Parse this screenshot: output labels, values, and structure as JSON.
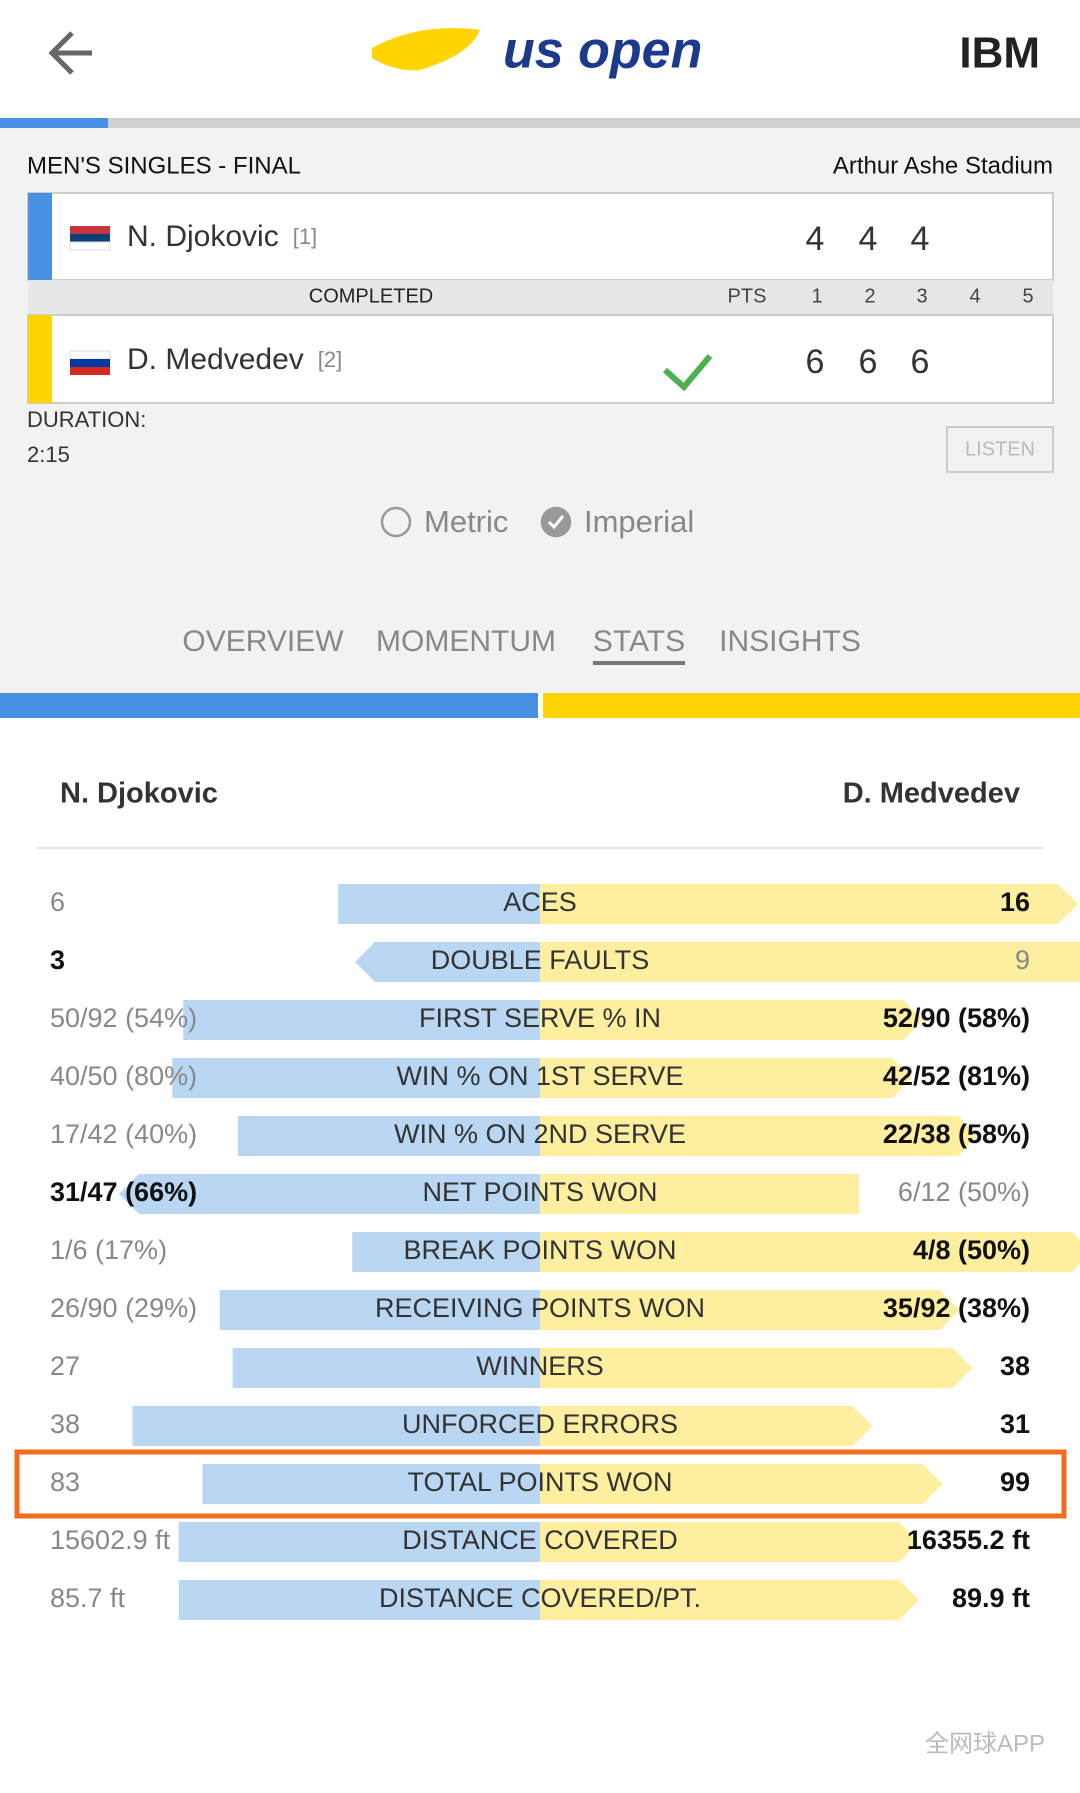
{
  "header": {
    "logo": "us open",
    "sponsor": "IBM"
  },
  "match": {
    "event": "MEN'S SINGLES - FINAL",
    "venue": "Arthur Ashe Stadium",
    "status": "COMPLETED",
    "pts_label": "PTS",
    "set_numbers": [
      "1",
      "2",
      "3",
      "4",
      "5"
    ],
    "players": [
      {
        "name": "N. Djokovic",
        "seed": "[1]",
        "sets": [
          "4",
          "4",
          "4"
        ]
      },
      {
        "name": "D. Medvedev",
        "seed": "[2]",
        "sets": [
          "6",
          "6",
          "6"
        ]
      }
    ],
    "duration_label": "DURATION:",
    "duration": "2:15",
    "listen": "LISTEN"
  },
  "units": {
    "options": [
      "Metric",
      "Imperial"
    ],
    "selected": 1
  },
  "tabs": {
    "items": [
      "OVERVIEW",
      "MOMENTUM",
      "STATS",
      "INSIGHTS"
    ],
    "active": 2
  },
  "stats": {
    "left_player": "N. Djokovic",
    "right_player": "D. Medvedev",
    "highlight": 10,
    "rows": [
      {
        "label": "ACES",
        "left": "6",
        "right": "16",
        "left_value": 6,
        "right_value": 16,
        "leader": "right"
      },
      {
        "label": "DOUBLE FAULTS",
        "left": "3",
        "right": "9",
        "left_value": 3,
        "right_value": 9,
        "leader": "left"
      },
      {
        "label": "FIRST SERVE % IN",
        "left": "50/92 (54%)",
        "right": "52/90 (58%)",
        "left_value": 54,
        "right_value": 58,
        "leader": "right"
      },
      {
        "label": "WIN % ON 1ST SERVE",
        "left": "40/50 (80%)",
        "right": "42/52 (81%)",
        "left_value": 80,
        "right_value": 81,
        "leader": "right"
      },
      {
        "label": "WIN % ON 2ND SERVE",
        "left": "17/42 (40%)",
        "right": "22/38 (58%)",
        "left_value": 40,
        "right_value": 58,
        "leader": "right"
      },
      {
        "label": "NET POINTS WON",
        "left": "31/47 (66%)",
        "right": "6/12 (50%)",
        "left_value": 66,
        "right_value": 50,
        "leader": "left"
      },
      {
        "label": "BREAK POINTS WON",
        "left": "1/6 (17%)",
        "right": "4/8 (50%)",
        "left_value": 17,
        "right_value": 50,
        "leader": "right"
      },
      {
        "label": "RECEIVING POINTS WON",
        "left": "26/90 (29%)",
        "right": "35/92 (38%)",
        "left_value": 29,
        "right_value": 38,
        "leader": "right"
      },
      {
        "label": "WINNERS",
        "left": "27",
        "right": "38",
        "left_value": 27,
        "right_value": 38,
        "leader": "right"
      },
      {
        "label": "UNFORCED ERRORS",
        "left": "38",
        "right": "31",
        "left_value": 38,
        "right_value": 31,
        "leader": "right"
      },
      {
        "label": "TOTAL POINTS WON",
        "left": "83",
        "right": "99",
        "left_value": 83,
        "right_value": 99,
        "leader": "right"
      },
      {
        "label": "DISTANCE COVERED",
        "left": "15602.9 ft",
        "right": "16355.2 ft",
        "left_value": 15602.9,
        "right_value": 16355.2,
        "leader": "right"
      },
      {
        "label": "DISTANCE COVERED/PT.",
        "left": "85.7 ft",
        "right": "89.9 ft",
        "left_value": 85.7,
        "right_value": 89.9,
        "leader": "right"
      }
    ]
  },
  "watermark": "全网球APP"
}
